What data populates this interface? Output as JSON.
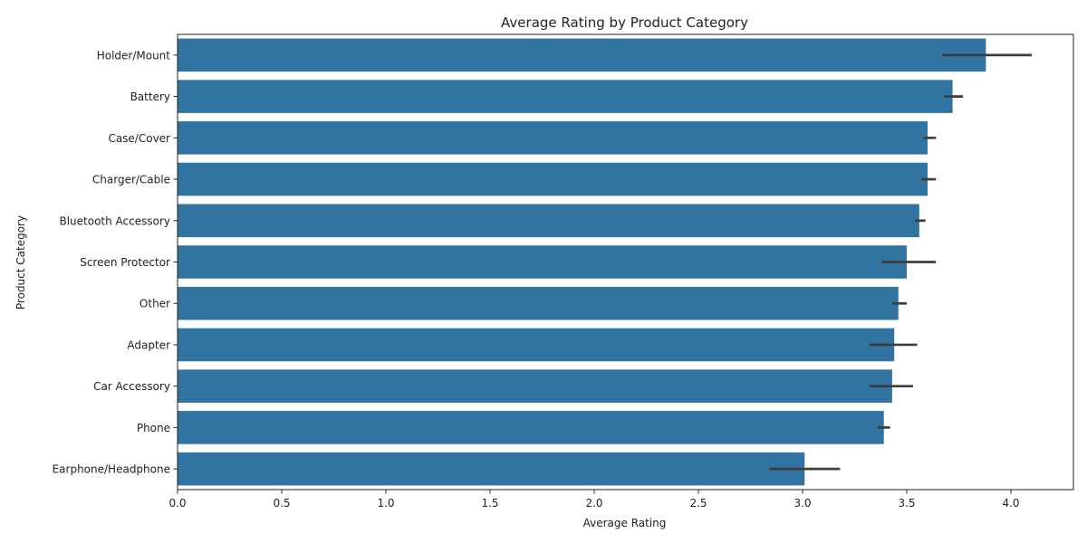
{
  "chart_data": {
    "type": "bar",
    "orientation": "horizontal",
    "title": "Average Rating by Product Category",
    "xlabel": "Average Rating",
    "ylabel": "Product Category",
    "xlim": [
      0,
      4.3
    ],
    "xticks": [
      "0.0",
      "0.5",
      "1.0",
      "1.5",
      "2.0",
      "2.5",
      "3.0",
      "3.5",
      "4.0"
    ],
    "bar_color": "#3274a1",
    "errorbar_color": "#3d3d3d",
    "grid": false,
    "legend": "none",
    "categories": [
      "Holder/Mount",
      "Battery",
      "Case/Cover",
      "Charger/Cable",
      "Bluetooth Accessory",
      "Screen Protector",
      "Other",
      "Adapter",
      "Car Accessory",
      "Phone",
      "Earphone/Headphone"
    ],
    "values": [
      3.88,
      3.72,
      3.6,
      3.6,
      3.56,
      3.5,
      3.46,
      3.44,
      3.43,
      3.39,
      3.01
    ],
    "error_ranges": [
      [
        3.67,
        4.1
      ],
      [
        3.68,
        3.77
      ],
      [
        3.58,
        3.64
      ],
      [
        3.57,
        3.64
      ],
      [
        3.54,
        3.59
      ],
      [
        3.38,
        3.64
      ],
      [
        3.43,
        3.5
      ],
      [
        3.32,
        3.55
      ],
      [
        3.32,
        3.53
      ],
      [
        3.36,
        3.42
      ],
      [
        2.84,
        3.18
      ]
    ]
  }
}
